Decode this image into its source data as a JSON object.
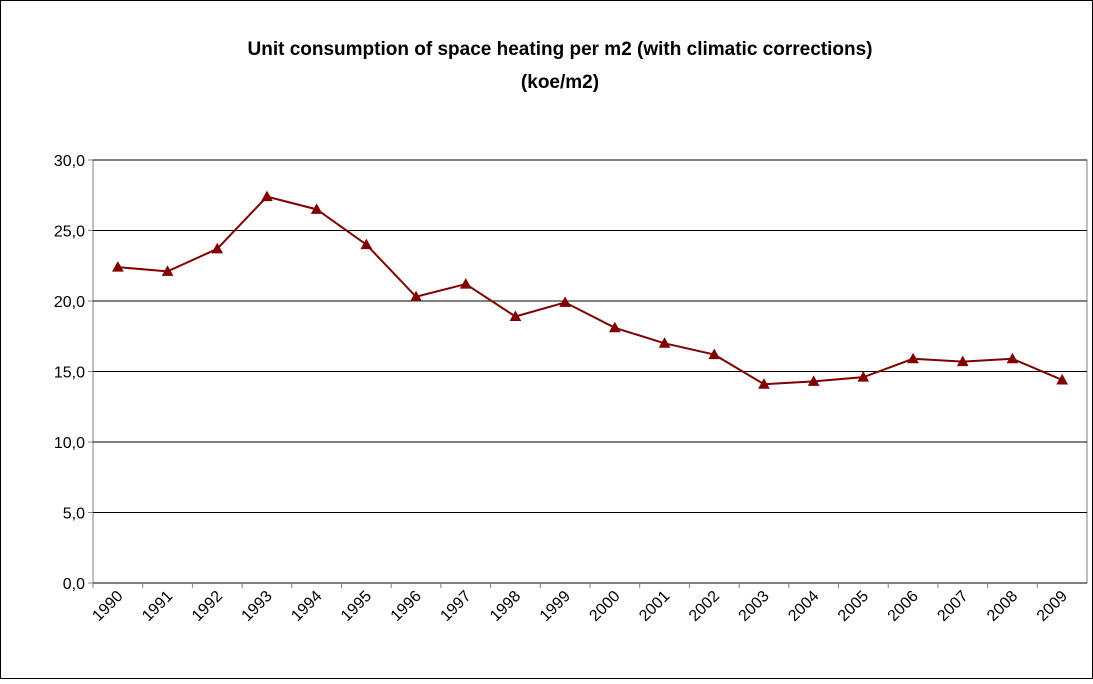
{
  "chart_data": {
    "type": "line",
    "title": "Unit consumption of space heating per m2 (with climatic corrections)",
    "subtitle": "(koe/m2)",
    "categories": [
      "1990",
      "1991",
      "1992",
      "1993",
      "1994",
      "1995",
      "1996",
      "1997",
      "1998",
      "1999",
      "2000",
      "2001",
      "2002",
      "2003",
      "2004",
      "2005",
      "2006",
      "2007",
      "2008",
      "2009"
    ],
    "values": [
      22.4,
      22.1,
      23.7,
      27.4,
      26.5,
      24.0,
      20.3,
      21.2,
      18.9,
      19.9,
      18.1,
      17.0,
      16.2,
      14.1,
      14.3,
      14.6,
      15.9,
      15.7,
      15.9,
      14.4
    ],
    "color": "#800000",
    "ylim": [
      0,
      30
    ],
    "yticks": [
      {
        "value": 0,
        "label": "0,0"
      },
      {
        "value": 5,
        "label": "5,0"
      },
      {
        "value": 10,
        "label": "10,0"
      },
      {
        "value": 15,
        "label": "15,0"
      },
      {
        "value": 20,
        "label": "20,0"
      },
      {
        "value": 25,
        "label": "25,0"
      },
      {
        "value": 30,
        "label": "30,0"
      }
    ],
    "grid": true
  }
}
